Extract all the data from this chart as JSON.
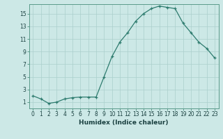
{
  "x": [
    0,
    1,
    2,
    3,
    4,
    5,
    6,
    7,
    8,
    9,
    10,
    11,
    12,
    13,
    14,
    15,
    16,
    17,
    18,
    19,
    20,
    21,
    22,
    23
  ],
  "y": [
    2.0,
    1.5,
    0.8,
    1.0,
    1.5,
    1.7,
    1.8,
    1.8,
    1.8,
    5.0,
    8.2,
    10.5,
    12.0,
    13.8,
    15.0,
    15.8,
    16.2,
    16.0,
    15.8,
    13.5,
    12.0,
    10.5,
    9.5,
    8.0
  ],
  "line_color": "#2d7b6e",
  "marker": "+",
  "bg_color": "#cce8e6",
  "grid_color": "#aacfcc",
  "xlabel": "Humidex (Indice chaleur)",
  "xlim": [
    -0.5,
    23.5
  ],
  "ylim": [
    0,
    16.5
  ],
  "yticks": [
    1,
    3,
    5,
    7,
    9,
    11,
    13,
    15
  ],
  "xticks": [
    0,
    1,
    2,
    3,
    4,
    5,
    6,
    7,
    8,
    9,
    10,
    11,
    12,
    13,
    14,
    15,
    16,
    17,
    18,
    19,
    20,
    21,
    22,
    23
  ],
  "xtick_labels": [
    "0",
    "1",
    "2",
    "3",
    "4",
    "5",
    "6",
    "7",
    "8",
    "9",
    "10",
    "11",
    "12",
    "13",
    "14",
    "15",
    "16",
    "17",
    "18",
    "19",
    "20",
    "21",
    "22",
    "23"
  ],
  "axis_color": "#5a9a8a",
  "font_color": "#1a4040",
  "label_fontsize": 6.5,
  "tick_fontsize": 5.5
}
